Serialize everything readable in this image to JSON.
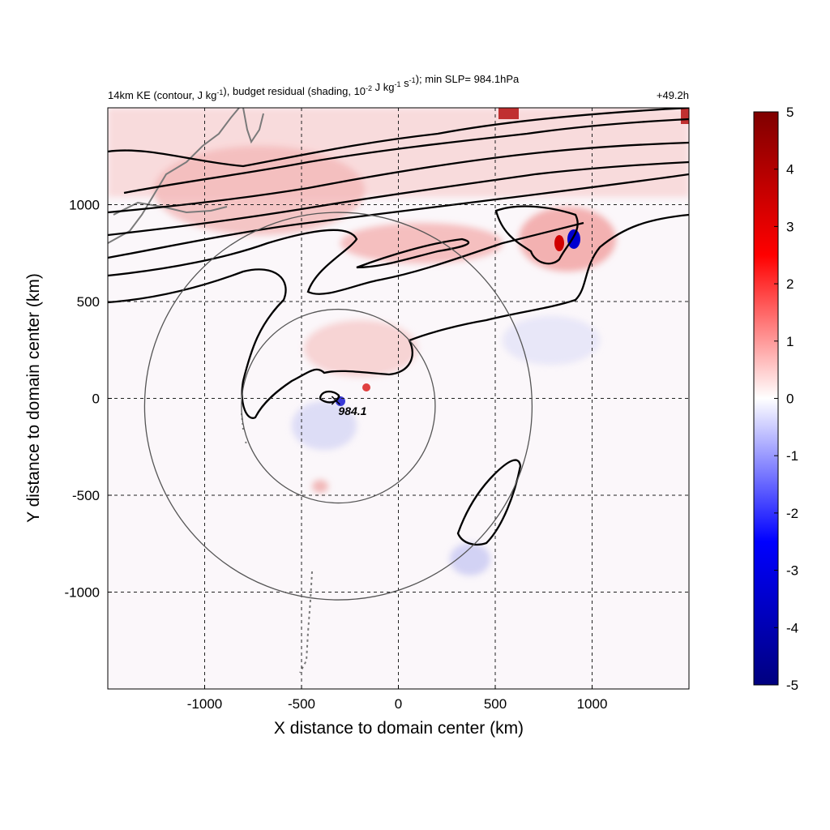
{
  "chart_data": {
    "type": "heatmap",
    "title_left": "14km KE (contour, J kg-1), budget residual (shading, 10-2 J kg-1 s-1); min SLP= 984.1hPa",
    "title_right": "+49.2h",
    "xlabel": "X distance to domain center (km)",
    "ylabel": "Y distance to domain center (km)",
    "xlim": [
      -1500,
      1500
    ],
    "ylim": [
      -1500,
      1500
    ],
    "x_ticks": [
      -1000,
      -500,
      0,
      500,
      1000
    ],
    "y_ticks": [
      1000,
      500,
      0,
      -500,
      -1000
    ],
    "grid": true,
    "colorbar": {
      "range": [
        -5,
        5
      ],
      "ticks": [
        5,
        4,
        3,
        2,
        1,
        0,
        -1,
        -2,
        -3,
        -4,
        -5
      ],
      "colormap": [
        "#00007f",
        "#0000ff",
        "#ffffff",
        "#ff0000",
        "#7f0000"
      ]
    },
    "storm_center": {
      "x": -310,
      "y": -40,
      "label": "984.1"
    },
    "range_circles_km": [
      500,
      1000
    ],
    "contour_color": "#000000",
    "coastline_color": "#7a7a7a"
  }
}
